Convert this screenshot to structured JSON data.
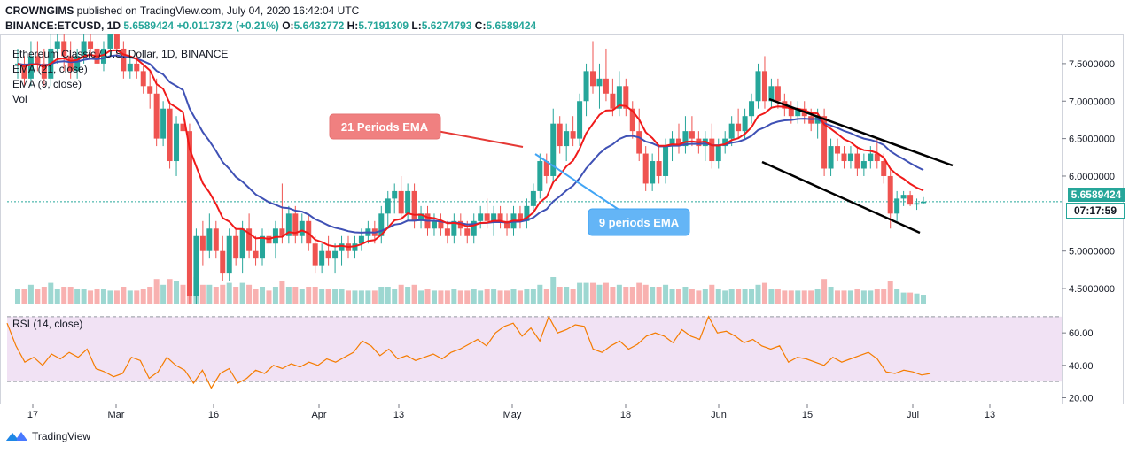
{
  "header": {
    "author": "CROWNGIMS",
    "published_text": "published on TradingView.com, July 04, 2020 16:42:04 UTC",
    "symbol_line": "BINANCE:ETCUSD, 1D",
    "last": "5.6589424",
    "change": "+0.0117372 (+0.21%)",
    "open_label": "O:",
    "open": "5.6432772",
    "high_label": "H:",
    "high": "5.7191309",
    "low_label": "L:",
    "low": "5.6274793",
    "close_label": "C:",
    "close": "5.6589424"
  },
  "legend": {
    "title": "Ethereum Classic / U.S. Dollar, 1D, BINANCE",
    "ema21": "EMA (21, close)",
    "ema9": "EMA (9, close)",
    "vol": "Vol"
  },
  "annotations": {
    "ema21_callout": "21 Periods EMA",
    "ema9_callout": "9 periods EMA"
  },
  "price_axis": {
    "ticks": [
      "7.5000000",
      "7.0000000",
      "6.5000000",
      "6.0000000",
      "5.0000000",
      "4.5000000"
    ],
    "last_price": "5.6589424",
    "countdown": "07:17:59"
  },
  "rsi": {
    "label": "RSI (14, close)",
    "ticks": [
      "60.00",
      "40.00",
      "20.00"
    ]
  },
  "time_axis": [
    "17",
    "Mar",
    "16",
    "Apr",
    "13",
    "May",
    "18",
    "Jun",
    "15",
    "Jul",
    "13"
  ],
  "brand": "TradingView",
  "colors": {
    "up": "#26a69a",
    "down": "#ef5350",
    "ema21": "#3f51b5",
    "ema9": "#f01a1a",
    "rsi": "#f57c00",
    "rsi_band": "#e1bee7",
    "callout_red": "#f08080",
    "callout_blue": "#64b5f6"
  },
  "chart_data": {
    "type": "candlestick",
    "interval": "1D",
    "price_scale": {
      "min": 4.3,
      "max": 7.9
    },
    "rsi_scale": {
      "min": 17,
      "max": 77
    },
    "rsi_band": [
      30,
      70
    ],
    "candles": [
      [
        7.5,
        7.7,
        7.3,
        7.5
      ],
      [
        7.5,
        7.6,
        7.2,
        7.3
      ],
      [
        7.3,
        7.8,
        7.2,
        7.6
      ],
      [
        7.6,
        7.8,
        7.4,
        7.5
      ],
      [
        7.5,
        7.7,
        7.2,
        7.3
      ],
      [
        7.3,
        7.9,
        7.2,
        7.7
      ],
      [
        7.7,
        7.9,
        7.5,
        7.8
      ],
      [
        7.8,
        7.9,
        7.4,
        7.6
      ],
      [
        7.6,
        7.8,
        7.3,
        7.4
      ],
      [
        7.4,
        7.7,
        7.3,
        7.6
      ],
      [
        7.6,
        7.9,
        7.5,
        7.8
      ],
      [
        7.8,
        7.9,
        7.6,
        7.7
      ],
      [
        7.7,
        7.8,
        7.4,
        7.5
      ],
      [
        7.5,
        7.8,
        7.4,
        7.7
      ],
      [
        7.7,
        7.9,
        7.6,
        7.9
      ],
      [
        7.9,
        7.9,
        7.6,
        7.7
      ],
      [
        7.7,
        7.8,
        7.3,
        7.4
      ],
      [
        7.4,
        7.6,
        7.3,
        7.5
      ],
      [
        7.5,
        7.6,
        7.3,
        7.4
      ],
      [
        7.4,
        7.5,
        7.1,
        7.2
      ],
      [
        7.2,
        7.4,
        6.9,
        7.1
      ],
      [
        7.1,
        7.3,
        6.4,
        6.5
      ],
      [
        6.5,
        7.0,
        6.4,
        6.9
      ],
      [
        6.9,
        7.0,
        6.1,
        6.2
      ],
      [
        6.2,
        6.8,
        6.0,
        6.7
      ],
      [
        6.7,
        7.0,
        6.4,
        6.6
      ],
      [
        6.6,
        6.7,
        4.3,
        4.4
      ],
      [
        4.4,
        5.3,
        4.3,
        5.2
      ],
      [
        5.2,
        5.4,
        4.8,
        5.0
      ],
      [
        5.0,
        5.5,
        4.9,
        5.3
      ],
      [
        5.3,
        5.4,
        4.9,
        5.0
      ],
      [
        5.0,
        5.2,
        4.6,
        4.7
      ],
      [
        4.7,
        5.3,
        4.6,
        5.2
      ],
      [
        5.2,
        5.3,
        4.8,
        4.9
      ],
      [
        4.9,
        5.4,
        4.7,
        5.3
      ],
      [
        5.3,
        5.5,
        4.9,
        5.0
      ],
      [
        5.0,
        5.2,
        4.8,
        4.9
      ],
      [
        4.9,
        5.3,
        4.8,
        5.2
      ],
      [
        5.2,
        5.3,
        5.0,
        5.1
      ],
      [
        5.1,
        5.4,
        4.9,
        5.3
      ],
      [
        5.3,
        5.9,
        5.1,
        5.2
      ],
      [
        5.2,
        5.6,
        5.1,
        5.5
      ],
      [
        5.5,
        5.6,
        5.1,
        5.2
      ],
      [
        5.2,
        5.5,
        5.1,
        5.4
      ],
      [
        5.4,
        5.5,
        5.0,
        5.1
      ],
      [
        5.1,
        5.2,
        4.7,
        4.8
      ],
      [
        4.8,
        5.1,
        4.7,
        5.0
      ],
      [
        5.0,
        5.2,
        4.8,
        4.9
      ],
      [
        4.9,
        5.1,
        4.7,
        5.0
      ],
      [
        5.0,
        5.2,
        4.8,
        5.1
      ],
      [
        5.1,
        5.2,
        4.9,
        5.0
      ],
      [
        5.0,
        5.2,
        4.9,
        5.1
      ],
      [
        5.1,
        5.3,
        5.0,
        5.2
      ],
      [
        5.2,
        5.4,
        5.1,
        5.3
      ],
      [
        5.3,
        5.4,
        5.1,
        5.2
      ],
      [
        5.2,
        5.6,
        5.1,
        5.5
      ],
      [
        5.5,
        5.8,
        5.3,
        5.7
      ],
      [
        5.7,
        5.9,
        5.5,
        5.8
      ],
      [
        5.8,
        6.0,
        5.4,
        5.5
      ],
      [
        5.5,
        5.9,
        5.4,
        5.8
      ],
      [
        5.8,
        5.9,
        5.3,
        5.4
      ],
      [
        5.4,
        5.6,
        5.3,
        5.5
      ],
      [
        5.5,
        5.6,
        5.2,
        5.3
      ],
      [
        5.3,
        5.5,
        5.2,
        5.4
      ],
      [
        5.4,
        5.5,
        5.2,
        5.3
      ],
      [
        5.3,
        5.4,
        5.1,
        5.2
      ],
      [
        5.2,
        5.5,
        5.1,
        5.4
      ],
      [
        5.4,
        5.5,
        5.2,
        5.3
      ],
      [
        5.3,
        5.4,
        5.1,
        5.2
      ],
      [
        5.2,
        5.5,
        5.1,
        5.4
      ],
      [
        5.4,
        5.6,
        5.3,
        5.5
      ],
      [
        5.5,
        5.7,
        5.3,
        5.4
      ],
      [
        5.4,
        5.6,
        5.2,
        5.5
      ],
      [
        5.5,
        5.6,
        5.3,
        5.4
      ],
      [
        5.4,
        5.5,
        5.2,
        5.3
      ],
      [
        5.3,
        5.6,
        5.2,
        5.5
      ],
      [
        5.5,
        5.6,
        5.3,
        5.4
      ],
      [
        5.4,
        5.7,
        5.3,
        5.6
      ],
      [
        5.6,
        5.9,
        5.5,
        5.8
      ],
      [
        5.8,
        6.3,
        5.7,
        6.2
      ],
      [
        6.2,
        6.3,
        5.9,
        6.0
      ],
      [
        6.0,
        6.9,
        5.9,
        6.7
      ],
      [
        6.7,
        6.8,
        6.3,
        6.4
      ],
      [
        6.4,
        6.7,
        6.2,
        6.6
      ],
      [
        6.6,
        6.8,
        6.4,
        6.5
      ],
      [
        6.5,
        7.1,
        6.4,
        7.0
      ],
      [
        7.0,
        7.5,
        6.8,
        7.4
      ],
      [
        7.4,
        7.8,
        7.1,
        7.2
      ],
      [
        7.2,
        7.5,
        6.9,
        7.3
      ],
      [
        7.3,
        7.7,
        7.0,
        7.1
      ],
      [
        7.1,
        7.3,
        6.8,
        6.9
      ],
      [
        6.9,
        7.4,
        6.8,
        7.2
      ],
      [
        7.2,
        7.3,
        6.8,
        6.9
      ],
      [
        6.9,
        7.0,
        6.5,
        6.6
      ],
      [
        6.6,
        6.9,
        6.2,
        6.3
      ],
      [
        6.3,
        6.4,
        5.8,
        5.9
      ],
      [
        5.9,
        6.3,
        5.8,
        6.2
      ],
      [
        6.2,
        6.4,
        5.9,
        6.0
      ],
      [
        6.0,
        6.5,
        5.9,
        6.4
      ],
      [
        6.4,
        6.6,
        6.2,
        6.5
      ],
      [
        6.5,
        6.7,
        6.3,
        6.4
      ],
      [
        6.4,
        6.8,
        6.3,
        6.6
      ],
      [
        6.6,
        6.8,
        6.4,
        6.5
      ],
      [
        6.5,
        6.6,
        6.3,
        6.4
      ],
      [
        6.4,
        6.6,
        6.2,
        6.5
      ],
      [
        6.5,
        6.7,
        6.1,
        6.2
      ],
      [
        6.2,
        6.5,
        6.1,
        6.4
      ],
      [
        6.4,
        6.6,
        6.3,
        6.5
      ],
      [
        6.5,
        6.8,
        6.4,
        6.7
      ],
      [
        6.7,
        6.9,
        6.5,
        6.6
      ],
      [
        6.6,
        6.9,
        6.5,
        6.8
      ],
      [
        6.8,
        7.1,
        6.7,
        7.0
      ],
      [
        7.0,
        7.5,
        6.9,
        7.4
      ],
      [
        7.4,
        7.6,
        6.9,
        7.0
      ],
      [
        7.0,
        7.3,
        6.9,
        7.2
      ],
      [
        7.2,
        7.3,
        6.9,
        7.0
      ],
      [
        7.0,
        7.1,
        6.8,
        6.9
      ],
      [
        6.9,
        7.0,
        6.7,
        6.8
      ],
      [
        6.8,
        7.0,
        6.7,
        6.9
      ],
      [
        6.9,
        7.0,
        6.7,
        6.8
      ],
      [
        6.8,
        6.9,
        6.6,
        6.7
      ],
      [
        6.7,
        6.9,
        6.5,
        6.8
      ],
      [
        6.8,
        6.9,
        6.0,
        6.1
      ],
      [
        6.1,
        6.5,
        6.0,
        6.4
      ],
      [
        6.4,
        6.5,
        6.2,
        6.3
      ],
      [
        6.3,
        6.4,
        6.1,
        6.2
      ],
      [
        6.2,
        6.4,
        6.1,
        6.3
      ],
      [
        6.3,
        6.4,
        6.0,
        6.1
      ],
      [
        6.1,
        6.3,
        6.0,
        6.2
      ],
      [
        6.2,
        6.4,
        6.1,
        6.3
      ],
      [
        6.3,
        6.5,
        6.1,
        6.2
      ],
      [
        6.2,
        6.3,
        5.9,
        6.0
      ],
      [
        6.0,
        6.1,
        5.3,
        5.5
      ],
      [
        5.5,
        5.8,
        5.4,
        5.7
      ],
      [
        5.7,
        5.8,
        5.6,
        5.75
      ],
      [
        5.75,
        5.8,
        5.6,
        5.62
      ],
      [
        5.62,
        5.7,
        5.55,
        5.64
      ],
      [
        5.64,
        5.72,
        5.63,
        5.66
      ]
    ],
    "rsi_values": [
      66,
      52,
      42,
      45,
      40,
      47,
      44,
      48,
      45,
      50,
      38,
      36,
      33,
      35,
      45,
      43,
      32,
      36,
      45,
      40,
      37,
      29,
      37,
      26,
      35,
      38,
      29,
      32,
      37,
      35,
      40,
      38,
      41,
      39,
      42,
      40,
      44,
      42,
      45,
      48,
      55,
      52,
      46,
      50,
      44,
      46,
      43,
      45,
      47,
      44,
      48,
      50,
      53,
      56,
      52,
      60,
      64,
      66,
      58,
      63,
      55,
      70,
      60,
      62,
      65,
      64,
      50,
      48,
      52,
      55,
      50,
      53,
      58,
      60,
      58,
      54,
      62,
      58,
      56,
      70,
      60,
      61,
      58,
      54,
      56,
      52,
      50,
      52,
      42,
      45,
      44,
      42,
      40,
      45,
      42,
      44,
      46,
      48,
      44,
      36,
      35,
      37,
      36,
      34,
      35
    ]
  }
}
